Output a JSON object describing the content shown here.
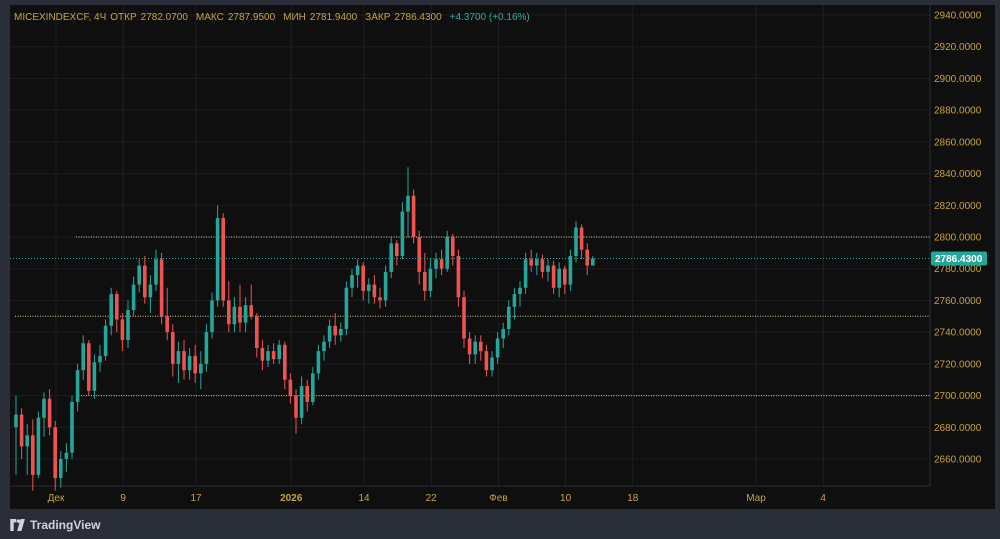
{
  "legend": {
    "symbol": "MICEXINDEXCF, 4Ч",
    "open_label": "ОТКР",
    "open_value": "2782.0700",
    "high_label": "МАКС",
    "high_value": "2787.9500",
    "low_label": "МИН",
    "low_value": "2781.9400",
    "close_label": "ЗАКР",
    "close_value": "2786.4300",
    "change": "+4.3700 (+0.16%)"
  },
  "brand": {
    "name": "TradingView"
  },
  "colors": {
    "up": "#26a69a",
    "down": "#ef5350",
    "background": "#0f0f0f",
    "grid": "#1c1e24",
    "axis_text": "#c8a33a",
    "level_line": "#d9c89a",
    "last_price_bg": "#26a69a"
  },
  "chart_data": {
    "type": "candlestick",
    "title": "",
    "xlabel": "",
    "ylabel": "",
    "ylim": [
      2640,
      2940
    ],
    "y_ticks": [
      "2660.0000",
      "2680.0000",
      "2700.0000",
      "2720.0000",
      "2740.0000",
      "2760.0000",
      "2780.0000",
      "2800.0000",
      "2820.0000",
      "2840.0000",
      "2860.0000",
      "2880.0000",
      "2900.0000",
      "2920.0000",
      "2940.0000"
    ],
    "x_ticks": [
      {
        "label": "Дек",
        "index": 0
      },
      {
        "label": "9",
        "index": 12
      },
      {
        "label": "17",
        "index": 25
      },
      {
        "label": "2026",
        "index": 42
      },
      {
        "label": "14",
        "index": 55
      },
      {
        "label": "22",
        "index": 67
      },
      {
        "label": "Фев",
        "index": 79
      },
      {
        "label": "10",
        "index": 91
      },
      {
        "label": "18",
        "index": 103
      },
      {
        "label": "Мар",
        "index": 125
      },
      {
        "label": "4",
        "index": 137
      }
    ],
    "horizontal_levels": [
      2700,
      2750,
      2800
    ],
    "last_price": 2786.43,
    "last_price_label": "2786.4300",
    "candles": [
      {
        "o": 2680,
        "h": 2700,
        "l": 2650,
        "c": 2688
      },
      {
        "o": 2688,
        "h": 2692,
        "l": 2660,
        "c": 2668
      },
      {
        "o": 2668,
        "h": 2682,
        "l": 2650,
        "c": 2675
      },
      {
        "o": 2675,
        "h": 2685,
        "l": 2640,
        "c": 2650
      },
      {
        "o": 2650,
        "h": 2690,
        "l": 2648,
        "c": 2686
      },
      {
        "o": 2686,
        "h": 2702,
        "l": 2674,
        "c": 2698
      },
      {
        "o": 2698,
        "h": 2704,
        "l": 2675,
        "c": 2680
      },
      {
        "o": 2680,
        "h": 2684,
        "l": 2640,
        "c": 2648
      },
      {
        "o": 2648,
        "h": 2665,
        "l": 2642,
        "c": 2660
      },
      {
        "o": 2660,
        "h": 2670,
        "l": 2652,
        "c": 2664
      },
      {
        "o": 2664,
        "h": 2700,
        "l": 2660,
        "c": 2696
      },
      {
        "o": 2696,
        "h": 2720,
        "l": 2690,
        "c": 2716
      },
      {
        "o": 2716,
        "h": 2738,
        "l": 2710,
        "c": 2733
      },
      {
        "o": 2733,
        "h": 2735,
        "l": 2700,
        "c": 2703
      },
      {
        "o": 2703,
        "h": 2726,
        "l": 2698,
        "c": 2721
      },
      {
        "o": 2721,
        "h": 2732,
        "l": 2715,
        "c": 2725
      },
      {
        "o": 2725,
        "h": 2748,
        "l": 2722,
        "c": 2744
      },
      {
        "o": 2744,
        "h": 2768,
        "l": 2738,
        "c": 2764
      },
      {
        "o": 2764,
        "h": 2766,
        "l": 2740,
        "c": 2748
      },
      {
        "o": 2748,
        "h": 2752,
        "l": 2728,
        "c": 2735
      },
      {
        "o": 2735,
        "h": 2760,
        "l": 2730,
        "c": 2754
      },
      {
        "o": 2754,
        "h": 2775,
        "l": 2750,
        "c": 2770
      },
      {
        "o": 2770,
        "h": 2786,
        "l": 2765,
        "c": 2782
      },
      {
        "o": 2782,
        "h": 2788,
        "l": 2758,
        "c": 2762
      },
      {
        "o": 2762,
        "h": 2776,
        "l": 2752,
        "c": 2770
      },
      {
        "o": 2770,
        "h": 2792,
        "l": 2766,
        "c": 2786
      },
      {
        "o": 2786,
        "h": 2790,
        "l": 2745,
        "c": 2750
      },
      {
        "o": 2750,
        "h": 2768,
        "l": 2735,
        "c": 2740
      },
      {
        "o": 2740,
        "h": 2745,
        "l": 2712,
        "c": 2720
      },
      {
        "o": 2720,
        "h": 2734,
        "l": 2708,
        "c": 2728
      },
      {
        "o": 2728,
        "h": 2735,
        "l": 2710,
        "c": 2716
      },
      {
        "o": 2716,
        "h": 2730,
        "l": 2710,
        "c": 2725
      },
      {
        "o": 2725,
        "h": 2732,
        "l": 2708,
        "c": 2714
      },
      {
        "o": 2714,
        "h": 2728,
        "l": 2704,
        "c": 2720
      },
      {
        "o": 2720,
        "h": 2745,
        "l": 2715,
        "c": 2740
      },
      {
        "o": 2740,
        "h": 2765,
        "l": 2736,
        "c": 2760
      },
      {
        "o": 2760,
        "h": 2820,
        "l": 2756,
        "c": 2812
      },
      {
        "o": 2812,
        "h": 2815,
        "l": 2756,
        "c": 2760
      },
      {
        "o": 2760,
        "h": 2772,
        "l": 2740,
        "c": 2745
      },
      {
        "o": 2745,
        "h": 2762,
        "l": 2740,
        "c": 2756
      },
      {
        "o": 2756,
        "h": 2770,
        "l": 2740,
        "c": 2746
      },
      {
        "o": 2746,
        "h": 2762,
        "l": 2740,
        "c": 2757
      },
      {
        "o": 2757,
        "h": 2770,
        "l": 2748,
        "c": 2750
      },
      {
        "o": 2750,
        "h": 2752,
        "l": 2724,
        "c": 2730
      },
      {
        "o": 2730,
        "h": 2735,
        "l": 2716,
        "c": 2722
      },
      {
        "o": 2722,
        "h": 2732,
        "l": 2718,
        "c": 2728
      },
      {
        "o": 2728,
        "h": 2733,
        "l": 2720,
        "c": 2723
      },
      {
        "o": 2723,
        "h": 2735,
        "l": 2720,
        "c": 2732
      },
      {
        "o": 2732,
        "h": 2734,
        "l": 2704,
        "c": 2710
      },
      {
        "o": 2710,
        "h": 2714,
        "l": 2695,
        "c": 2700
      },
      {
        "o": 2700,
        "h": 2704,
        "l": 2676,
        "c": 2686
      },
      {
        "o": 2686,
        "h": 2712,
        "l": 2682,
        "c": 2706
      },
      {
        "o": 2706,
        "h": 2710,
        "l": 2690,
        "c": 2696
      },
      {
        "o": 2696,
        "h": 2718,
        "l": 2694,
        "c": 2714
      },
      {
        "o": 2714,
        "h": 2732,
        "l": 2710,
        "c": 2728
      },
      {
        "o": 2728,
        "h": 2738,
        "l": 2722,
        "c": 2734
      },
      {
        "o": 2734,
        "h": 2748,
        "l": 2730,
        "c": 2744
      },
      {
        "o": 2744,
        "h": 2752,
        "l": 2732,
        "c": 2738
      },
      {
        "o": 2738,
        "h": 2746,
        "l": 2734,
        "c": 2742
      },
      {
        "o": 2742,
        "h": 2772,
        "l": 2738,
        "c": 2768
      },
      {
        "o": 2768,
        "h": 2780,
        "l": 2762,
        "c": 2776
      },
      {
        "o": 2776,
        "h": 2786,
        "l": 2768,
        "c": 2782
      },
      {
        "o": 2782,
        "h": 2784,
        "l": 2760,
        "c": 2766
      },
      {
        "o": 2766,
        "h": 2774,
        "l": 2758,
        "c": 2770
      },
      {
        "o": 2770,
        "h": 2776,
        "l": 2758,
        "c": 2762
      },
      {
        "o": 2762,
        "h": 2768,
        "l": 2755,
        "c": 2760
      },
      {
        "o": 2760,
        "h": 2782,
        "l": 2756,
        "c": 2778
      },
      {
        "o": 2778,
        "h": 2800,
        "l": 2774,
        "c": 2796
      },
      {
        "o": 2796,
        "h": 2798,
        "l": 2782,
        "c": 2788
      },
      {
        "o": 2788,
        "h": 2822,
        "l": 2786,
        "c": 2816
      },
      {
        "o": 2816,
        "h": 2844,
        "l": 2800,
        "c": 2826
      },
      {
        "o": 2826,
        "h": 2830,
        "l": 2796,
        "c": 2800
      },
      {
        "o": 2800,
        "h": 2804,
        "l": 2770,
        "c": 2778
      },
      {
        "o": 2778,
        "h": 2790,
        "l": 2760,
        "c": 2766
      },
      {
        "o": 2766,
        "h": 2786,
        "l": 2762,
        "c": 2780
      },
      {
        "o": 2780,
        "h": 2790,
        "l": 2774,
        "c": 2786
      },
      {
        "o": 2786,
        "h": 2792,
        "l": 2776,
        "c": 2780
      },
      {
        "o": 2780,
        "h": 2804,
        "l": 2778,
        "c": 2800
      },
      {
        "o": 2800,
        "h": 2802,
        "l": 2782,
        "c": 2788
      },
      {
        "o": 2788,
        "h": 2792,
        "l": 2756,
        "c": 2762
      },
      {
        "o": 2762,
        "h": 2766,
        "l": 2730,
        "c": 2736
      },
      {
        "o": 2736,
        "h": 2740,
        "l": 2720,
        "c": 2726
      },
      {
        "o": 2726,
        "h": 2738,
        "l": 2720,
        "c": 2734
      },
      {
        "o": 2734,
        "h": 2738,
        "l": 2722,
        "c": 2728
      },
      {
        "o": 2728,
        "h": 2732,
        "l": 2712,
        "c": 2716
      },
      {
        "o": 2716,
        "h": 2728,
        "l": 2712,
        "c": 2724
      },
      {
        "o": 2724,
        "h": 2740,
        "l": 2720,
        "c": 2736
      },
      {
        "o": 2736,
        "h": 2746,
        "l": 2730,
        "c": 2742
      },
      {
        "o": 2742,
        "h": 2760,
        "l": 2738,
        "c": 2756
      },
      {
        "o": 2756,
        "h": 2768,
        "l": 2748,
        "c": 2764
      },
      {
        "o": 2764,
        "h": 2772,
        "l": 2756,
        "c": 2768
      },
      {
        "o": 2768,
        "h": 2790,
        "l": 2764,
        "c": 2786
      },
      {
        "o": 2786,
        "h": 2792,
        "l": 2778,
        "c": 2782
      },
      {
        "o": 2782,
        "h": 2790,
        "l": 2776,
        "c": 2786
      },
      {
        "o": 2786,
        "h": 2789,
        "l": 2774,
        "c": 2778
      },
      {
        "o": 2778,
        "h": 2786,
        "l": 2772,
        "c": 2782
      },
      {
        "o": 2782,
        "h": 2785,
        "l": 2764,
        "c": 2768
      },
      {
        "o": 2768,
        "h": 2784,
        "l": 2762,
        "c": 2780
      },
      {
        "o": 2780,
        "h": 2782,
        "l": 2764,
        "c": 2770
      },
      {
        "o": 2770,
        "h": 2792,
        "l": 2766,
        "c": 2788
      },
      {
        "o": 2788,
        "h": 2810,
        "l": 2784,
        "c": 2806
      },
      {
        "o": 2806,
        "h": 2808,
        "l": 2786,
        "c": 2792
      },
      {
        "o": 2792,
        "h": 2796,
        "l": 2776,
        "c": 2782
      },
      {
        "o": 2782,
        "h": 2787.95,
        "l": 2781.94,
        "c": 2786.43
      }
    ]
  }
}
